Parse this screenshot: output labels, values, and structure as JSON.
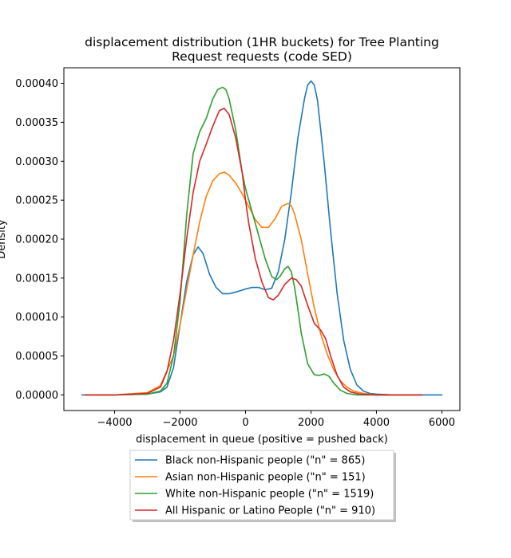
{
  "chart_data": {
    "type": "line",
    "title_lines": [
      "displacement distribution (1HR buckets) for Tree Planting",
      "Request requests (code SED)"
    ],
    "xlabel": "displacement in queue (positive = pushed back)",
    "ylabel": "Density",
    "xlim": [
      -5550,
      6550
    ],
    "ylim": [
      -2e-05,
      0.00042
    ],
    "xticks": [
      -4000,
      -2000,
      0,
      2000,
      4000,
      6000
    ],
    "xtick_labels": [
      "−4000",
      "−2000",
      "0",
      "2000",
      "4000",
      "6000"
    ],
    "yticks": [
      0,
      5e-05,
      0.0001,
      0.00015,
      0.0002,
      0.00025,
      0.0003,
      0.00035,
      0.0004
    ],
    "ytick_labels": [
      "0.00000",
      "0.00005",
      "0.00010",
      "0.00015",
      "0.00020",
      "0.00025",
      "0.00030",
      "0.00035",
      "0.00040"
    ],
    "grid": false,
    "legend_placement": "below-center",
    "series": [
      {
        "name": "Black non-Hispanic people (\"n\" = 865)",
        "color": "#1f77b4",
        "x": [
          -5000,
          -4000,
          -3000,
          -2600,
          -2400,
          -2200,
          -2000,
          -1800,
          -1600,
          -1450,
          -1300,
          -1100,
          -900,
          -700,
          -500,
          -300,
          0,
          200,
          400,
          600,
          800,
          1000,
          1200,
          1400,
          1600,
          1800,
          1900,
          2000,
          2100,
          2200,
          2400,
          2600,
          2800,
          3000,
          3200,
          3400,
          3600,
          3800,
          4000,
          4500,
          5000,
          6000
        ],
        "y": [
          0,
          0,
          1e-06,
          4e-06,
          1e-05,
          3.5e-05,
          9e-05,
          0.000145,
          0.00018,
          0.00019,
          0.000182,
          0.000155,
          0.000138,
          0.00013,
          0.00013,
          0.000132,
          0.000136,
          0.000138,
          0.000138,
          0.000135,
          0.000137,
          0.000158,
          0.0002,
          0.00026,
          0.00033,
          0.00038,
          0.000398,
          0.000403,
          0.000398,
          0.000378,
          0.0003,
          0.00021,
          0.00013,
          7e-05,
          3.3e-05,
          1.3e-05,
          5e-06,
          2e-06,
          1e-06,
          0,
          0,
          0
        ]
      },
      {
        "name": "Asian non-Hispanic people (\"n\" = 151)",
        "color": "#ff7f0e",
        "x": [
          -4900,
          -4000,
          -3000,
          -2600,
          -2200,
          -2000,
          -1800,
          -1600,
          -1400,
          -1200,
          -1000,
          -800,
          -650,
          -500,
          -300,
          -100,
          100,
          300,
          500,
          700,
          900,
          1100,
          1300,
          1400,
          1500,
          1700,
          1900,
          2100,
          2300,
          2500,
          2700,
          2900,
          3100,
          3300,
          3600,
          4000,
          4500,
          5400
        ],
        "y": [
          0,
          0,
          3e-06,
          1.2e-05,
          5e-05,
          9e-05,
          0.000135,
          0.00018,
          0.000222,
          0.000255,
          0.000275,
          0.000284,
          0.000286,
          0.000282,
          0.000272,
          0.000258,
          0.000242,
          0.000225,
          0.000215,
          0.000215,
          0.000226,
          0.000242,
          0.000246,
          0.000243,
          0.000232,
          0.0002,
          0.000155,
          0.000112,
          7.8e-05,
          5.2e-05,
          3.2e-05,
          1.8e-05,
          1e-05,
          5e-06,
          2e-06,
          0,
          0,
          0
        ]
      },
      {
        "name": "White non-Hispanic people (\"n\" = 1519)",
        "color": "#2ca02c",
        "x": [
          -4900,
          -4000,
          -3000,
          -2600,
          -2400,
          -2200,
          -2000,
          -1800,
          -1600,
          -1400,
          -1200,
          -1000,
          -850,
          -700,
          -600,
          -500,
          -300,
          -100,
          0,
          200,
          400,
          600,
          800,
          950,
          1050,
          1200,
          1300,
          1400,
          1500,
          1600,
          1700,
          1900,
          2100,
          2250,
          2400,
          2550,
          2700,
          2900,
          3100,
          3400,
          4000,
          5400
        ],
        "y": [
          0,
          0,
          1e-06,
          5e-06,
          1.5e-05,
          5e-05,
          0.00012,
          0.00023,
          0.00031,
          0.000338,
          0.000355,
          0.00038,
          0.000392,
          0.000395,
          0.000392,
          0.00038,
          0.00034,
          0.000285,
          0.000265,
          0.000235,
          0.000205,
          0.000175,
          0.000152,
          0.000148,
          0.000152,
          0.000162,
          0.000165,
          0.000158,
          0.000138,
          0.00011,
          8e-05,
          4e-05,
          2.6e-05,
          2.5e-05,
          2.7e-05,
          2.4e-05,
          1.5e-05,
          6e-06,
          2e-06,
          0,
          0,
          0
        ]
      },
      {
        "name": "All Hispanic or Latino People (\"n\" = 910)",
        "color": "#d62728",
        "x": [
          -4900,
          -4000,
          -3000,
          -2600,
          -2400,
          -2200,
          -2000,
          -1800,
          -1600,
          -1400,
          -1200,
          -1000,
          -800,
          -650,
          -500,
          -300,
          -100,
          0,
          100,
          300,
          500,
          700,
          850,
          1000,
          1200,
          1400,
          1550,
          1700,
          1900,
          2100,
          2300,
          2450,
          2600,
          2800,
          3000,
          3200,
          3500,
          4000,
          4500,
          5400
        ],
        "y": [
          0,
          0,
          2e-06,
          1e-05,
          3e-05,
          7e-05,
          0.00013,
          0.0002,
          0.00026,
          0.0003,
          0.000322,
          0.000345,
          0.000365,
          0.000368,
          0.00036,
          0.00033,
          0.000285,
          0.00025,
          0.00022,
          0.000175,
          0.000145,
          0.000125,
          0.000122,
          0.000128,
          0.000142,
          0.00015,
          0.000148,
          0.00014,
          0.000115,
          9.2e-05,
          8.3e-05,
          7.2e-05,
          5e-05,
          2.5e-05,
          1e-05,
          4e-06,
          1e-06,
          0,
          0,
          0
        ]
      }
    ]
  }
}
